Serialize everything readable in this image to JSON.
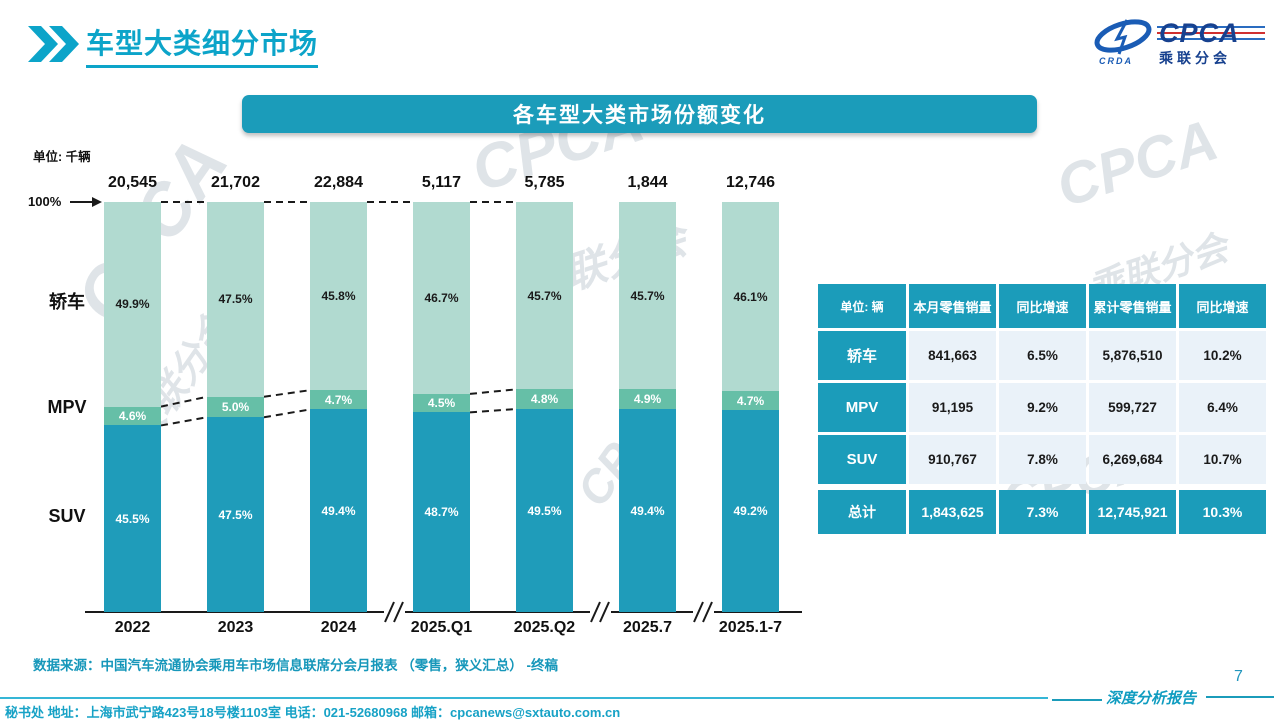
{
  "header": {
    "title": "车型大类细分市场"
  },
  "logo": {
    "cpca": "CPCA",
    "sub": "乘联分会",
    "oval_sub": "CRDA"
  },
  "banner": {
    "title": "各车型大类市场份额变化"
  },
  "colors": {
    "teal": "#1b9cba",
    "title_teal": "#0ca4c9"
  },
  "chart_data": {
    "type": "stacked-bar",
    "title": "各车型大类市场份额变化",
    "unit_label": "单位: 千辆",
    "axis_top_label": "100%",
    "ylabel": "",
    "xlabel": "",
    "categories": [
      "2022",
      "2023",
      "2024",
      "2025.Q1",
      "2025.Q2",
      "2025.7",
      "2025.1-7"
    ],
    "totals": [
      "20,545",
      "21,702",
      "22,884",
      "5,117",
      "5,785",
      "1,844",
      "12,746"
    ],
    "series": [
      {
        "key": "sedan",
        "name": "轿车",
        "color": "#b1dad0",
        "label_color": "#1a1a1a",
        "values": [
          49.9,
          47.5,
          45.8,
          46.7,
          45.7,
          45.7,
          46.1
        ]
      },
      {
        "key": "mpv",
        "name": "MPV",
        "color": "#66bfa7",
        "label_color": "#ffffff",
        "values": [
          4.6,
          5.0,
          4.7,
          4.5,
          4.8,
          4.9,
          4.7
        ]
      },
      {
        "key": "suv",
        "name": "SUV",
        "color": "#1f9cba",
        "label_color": "#ffffff",
        "values": [
          45.5,
          47.5,
          49.4,
          48.7,
          49.5,
          49.4,
          49.2
        ]
      }
    ],
    "top_connect_pairs": [
      0,
      1,
      2,
      3
    ],
    "mpv_connect_pairs": [
      0,
      1,
      3
    ],
    "axis_breaks_after": [
      2,
      4,
      5
    ]
  },
  "table": {
    "unit_header": "单位: 辆",
    "columns": [
      "本月零售销量",
      "同比增速",
      "累计零售销量",
      "同比增速"
    ],
    "rows": [
      {
        "label": "轿车",
        "values": [
          "841,663",
          "6.5%",
          "5,876,510",
          "10.2%"
        ]
      },
      {
        "label": "MPV",
        "values": [
          "91,195",
          "9.2%",
          "599,727",
          "6.4%"
        ]
      },
      {
        "label": "SUV",
        "values": [
          "910,767",
          "7.8%",
          "6,269,684",
          "10.7%"
        ]
      }
    ],
    "total_row": {
      "label": "总计",
      "values": [
        "1,843,625",
        "7.3%",
        "12,745,921",
        "10.3%"
      ]
    }
  },
  "source_note": "数据来源：中国汽车流通协会乘用车市场信息联席分会月报表 （零售，狭义汇总） -终稿",
  "footer": {
    "line": "秘书处  地址：上海市武宁路423号18号楼1103室  电话：021-52680968   邮箱：cpcanews@sxtauto.com.cn",
    "report_label": "深度分析报告",
    "page_number": "7"
  },
  "watermark": {
    "text_latin": "CPCA",
    "text_cn": "乘联分会"
  }
}
